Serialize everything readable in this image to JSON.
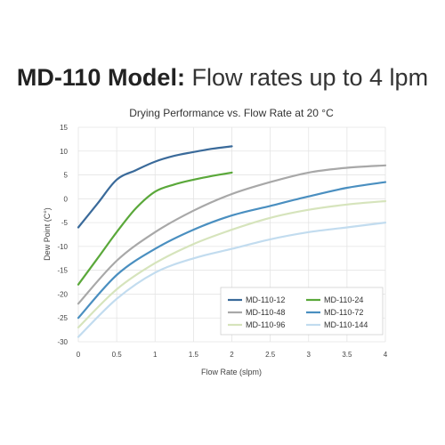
{
  "heading": {
    "bold": "MD-110 Model:",
    "light": "Flow rates up to 4 lpm"
  },
  "chart_data": {
    "type": "line",
    "title": "Drying Performance vs. Flow Rate at 20 °C",
    "xlabel": "Flow Rate (slpm)",
    "ylabel": "Dew Point (C°)",
    "xlim": [
      0,
      4
    ],
    "ylim": [
      -30,
      15
    ],
    "xticks": [
      "0",
      "0.5",
      "1",
      "1.5",
      "2",
      "2.5",
      "3",
      "3.5",
      "4"
    ],
    "yticks": [
      "15",
      "10",
      "5",
      "0",
      "-5",
      "-10",
      "-15",
      "-20",
      "-25",
      "-30"
    ],
    "grid": true,
    "legend_position": "bottom-right",
    "series": [
      {
        "name": "MD-110-12",
        "color": "#3a6a9a",
        "x": [
          0,
          0.25,
          0.5,
          0.75,
          1.0,
          1.25,
          1.5,
          1.75,
          2.0
        ],
        "y": [
          -6,
          -1,
          4,
          6,
          7.8,
          9,
          9.8,
          10.5,
          11
        ]
      },
      {
        "name": "MD-110-24",
        "color": "#5aa83a",
        "x": [
          0,
          0.25,
          0.5,
          0.75,
          1.0,
          1.25,
          1.5,
          1.75,
          2.0
        ],
        "y": [
          -18,
          -12.5,
          -7,
          -2,
          1.5,
          3,
          4,
          4.8,
          5.5
        ]
      },
      {
        "name": "MD-110-48",
        "color": "#a8a8a8",
        "x": [
          0,
          0.5,
          1.0,
          1.5,
          2.0,
          2.5,
          3.0,
          3.5,
          4.0
        ],
        "y": [
          -22,
          -13,
          -7,
          -2.5,
          1,
          3.5,
          5.5,
          6.5,
          7
        ]
      },
      {
        "name": "MD-110-72",
        "color": "#4a8fc0",
        "x": [
          0,
          0.5,
          1.0,
          1.5,
          2.0,
          2.5,
          3.0,
          3.5,
          4.0
        ],
        "y": [
          -25,
          -16,
          -10.5,
          -6.5,
          -3.5,
          -1.5,
          0.5,
          2.3,
          3.5
        ]
      },
      {
        "name": "MD-110-96",
        "color": "#d6e4bc",
        "x": [
          0,
          0.5,
          1.0,
          1.5,
          2.0,
          2.5,
          3.0,
          3.5,
          4.0
        ],
        "y": [
          -27,
          -19,
          -13.5,
          -9.5,
          -6.5,
          -4,
          -2.3,
          -1.2,
          -0.5
        ]
      },
      {
        "name": "MD-110-144",
        "color": "#c2dcef",
        "x": [
          0,
          0.5,
          1.0,
          1.5,
          2.0,
          2.5,
          3.0,
          3.5,
          4.0
        ],
        "y": [
          -29,
          -21,
          -15.5,
          -12.5,
          -10.5,
          -8.5,
          -7,
          -6,
          -5
        ]
      }
    ]
  }
}
